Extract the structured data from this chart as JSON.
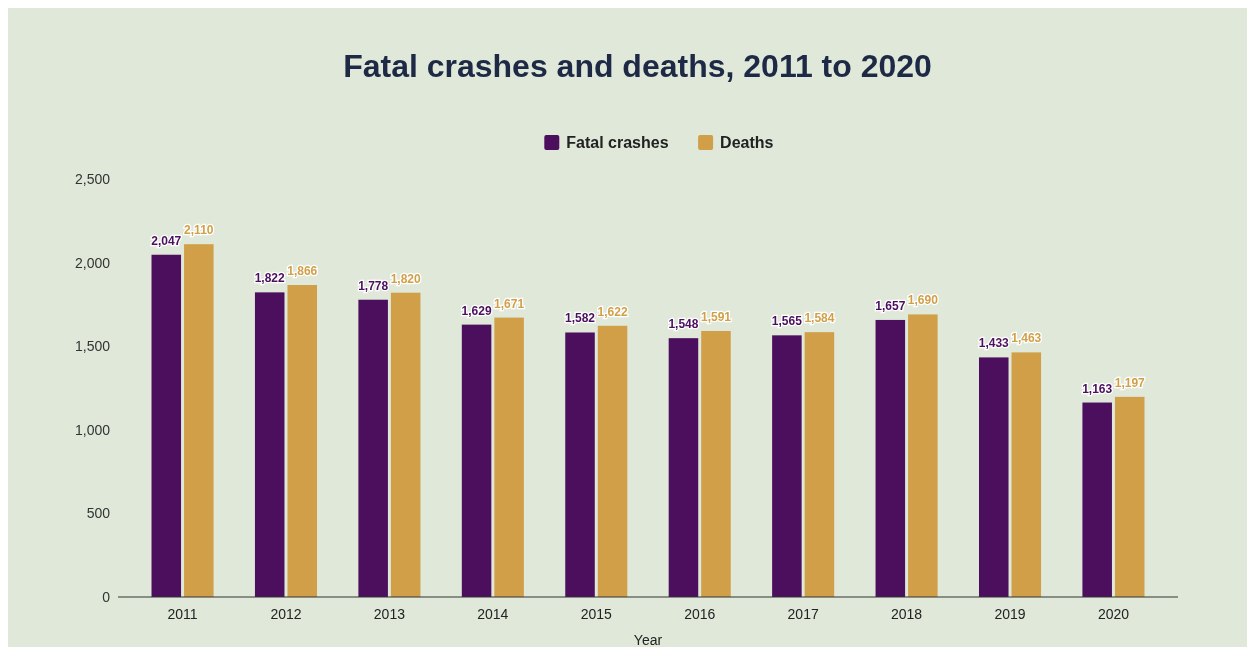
{
  "chart_data": {
    "type": "bar",
    "title": "Fatal crashes and deaths, 2011 to 2020",
    "xlabel": "Year",
    "categories": [
      "2011",
      "2012",
      "2013",
      "2014",
      "2015",
      "2016",
      "2017",
      "2018",
      "2019",
      "2020"
    ],
    "series": [
      {
        "name": "Fatal crashes",
        "color": "#4b0f5e",
        "values": [
          2047,
          1822,
          1778,
          1629,
          1582,
          1548,
          1565,
          1657,
          1433,
          1163
        ],
        "value_labels": [
          "2,047",
          "1,822",
          "1,778",
          "1,629",
          "1,582",
          "1,548",
          "1,565",
          "1,657",
          "1,433",
          "1,163"
        ]
      },
      {
        "name": "Deaths",
        "color": "#d19f48",
        "values": [
          2110,
          1866,
          1820,
          1671,
          1622,
          1591,
          1584,
          1690,
          1463,
          1197
        ],
        "value_labels": [
          "2,110",
          "1,866",
          "1,820",
          "1,671",
          "1,622",
          "1,591",
          "1,584",
          "1,690",
          "1,463",
          "1,197"
        ]
      }
    ],
    "ylim": [
      0,
      2500
    ],
    "yticks": [
      {
        "value": 0,
        "label": "0"
      },
      {
        "value": 500,
        "label": "500"
      },
      {
        "value": 1000,
        "label": "1,000"
      },
      {
        "value": 1500,
        "label": "1,500"
      },
      {
        "value": 2000,
        "label": "2,000"
      },
      {
        "value": 2500,
        "label": "2,500"
      }
    ],
    "grid": false,
    "legend": "top"
  }
}
